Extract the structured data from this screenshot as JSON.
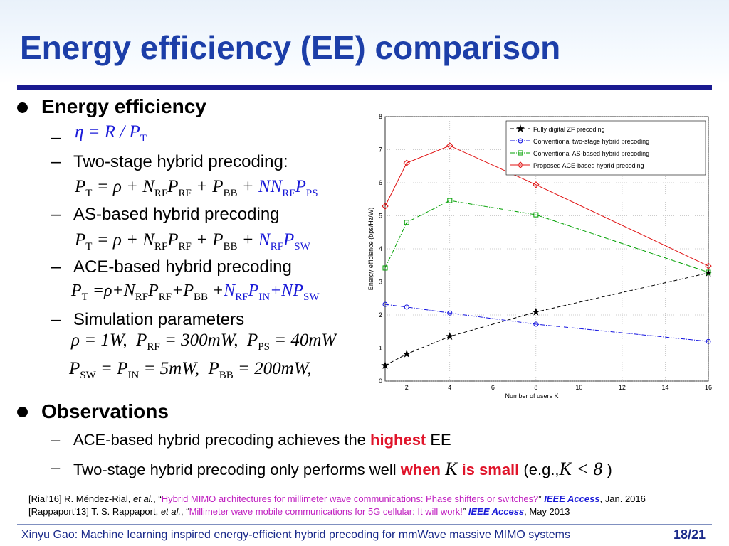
{
  "header": {
    "title": "Energy efficiency (EE) comparison"
  },
  "section1": {
    "heading": "Energy efficiency",
    "items": [
      {
        "formula": [
          {
            "t": "η = R / P"
          },
          {
            "t": "T",
            "sub": true
          }
        ]
      },
      {
        "text": "Two-stage hybrid precoding:",
        "formula": [
          {
            "t": "P"
          },
          {
            "t": "T",
            "sub": true
          },
          {
            "t": " = ρ + N"
          },
          {
            "t": "RF",
            "sub": true
          },
          {
            "t": "P"
          },
          {
            "t": "RF",
            "sub": true
          },
          {
            "t": " + P"
          },
          {
            "t": "BB",
            "sub": true
          },
          {
            "t": " + "
          },
          {
            "t": "NN",
            "color": "#1a1ad8"
          },
          {
            "t": "RF",
            "sub": true,
            "color": "#1a1ad8"
          },
          {
            "t": "P",
            "color": "#1a1ad8"
          },
          {
            "t": "PS",
            "sub": true,
            "color": "#1a1ad8"
          }
        ]
      },
      {
        "text": "AS-based hybrid precoding",
        "formula": [
          {
            "t": "P"
          },
          {
            "t": "T",
            "sub": true
          },
          {
            "t": " = ρ + N"
          },
          {
            "t": "RF",
            "sub": true
          },
          {
            "t": "P"
          },
          {
            "t": "RF",
            "sub": true
          },
          {
            "t": " + P"
          },
          {
            "t": "BB",
            "sub": true
          },
          {
            "t": " + "
          },
          {
            "t": "N",
            "color": "#1a1ad8"
          },
          {
            "t": "RF",
            "sub": true,
            "color": "#1a1ad8"
          },
          {
            "t": "P",
            "color": "#1a1ad8"
          },
          {
            "t": "SW",
            "sub": true,
            "color": "#1a1ad8"
          }
        ]
      },
      {
        "text": "ACE-based hybrid precoding",
        "formula": [
          {
            "t": "P"
          },
          {
            "t": "T",
            "sub": true
          },
          {
            "t": " =ρ+N"
          },
          {
            "t": "RF",
            "sub": true
          },
          {
            "t": "P"
          },
          {
            "t": "RF",
            "sub": true
          },
          {
            "t": "+P"
          },
          {
            "t": "BB",
            "sub": true
          },
          {
            "t": " +"
          },
          {
            "t": "N",
            "color": "#1a1ad8"
          },
          {
            "t": "RF",
            "sub": true,
            "color": "#1a1ad8"
          },
          {
            "t": "P",
            "color": "#1a1ad8"
          },
          {
            "t": "IN",
            "sub": true,
            "color": "#1a1ad8"
          },
          {
            "t": "+NP",
            "color": "#1a1ad8"
          },
          {
            "t": "SW",
            "sub": true,
            "color": "#1a1ad8"
          }
        ]
      },
      {
        "text": "Simulation parameters",
        "formula": [
          {
            "t": "ρ = 1W,  P"
          },
          {
            "t": "RF",
            "sub": true
          },
          {
            "t": " = 300mW,  P"
          },
          {
            "t": "PS",
            "sub": true
          },
          {
            "t": " = 40mW"
          }
        ],
        "formula2": [
          {
            "t": "P"
          },
          {
            "t": "SW",
            "sub": true
          },
          {
            "t": " = P"
          },
          {
            "t": "IN",
            "sub": true
          },
          {
            "t": " = 5mW,  P"
          },
          {
            "t": "BB",
            "sub": true
          },
          {
            "t": " = 200mW,"
          }
        ]
      }
    ]
  },
  "section2": {
    "heading": "Observations",
    "items": [
      [
        {
          "t": "ACE-based hybrid precoding achieves the "
        },
        {
          "t": "highest",
          "color": "#e0142a",
          "bold": true
        },
        {
          "t": " EE"
        }
      ],
      [
        {
          "t": "Two-stage hybrid precoding only performs well "
        },
        {
          "t": "when ",
          "color": "#e0142a",
          "bold": true
        },
        {
          "t": "K",
          "italic": true,
          "serif": true
        },
        {
          "t": " is small",
          "color": "#e0142a",
          "bold": true
        },
        {
          "t": " (e.g.,"
        },
        {
          "t": "K < 8",
          "italic": true,
          "serif": true
        },
        {
          "t": " )"
        }
      ]
    ]
  },
  "references": [
    [
      {
        "t": "[Rial'16] R. Méndez-Rial, "
      },
      {
        "t": "et al.",
        "italic": true
      },
      {
        "t": ", “"
      },
      {
        "t": "Hybrid MIMO architectures for millimeter wave communications: Phase shifters or switches?",
        "color": "#c020c0"
      },
      {
        "t": "” "
      },
      {
        "t": "IEEE Access",
        "color": "#1a1ad8",
        "bold": true,
        "italic": true
      },
      {
        "t": ", Jan. 2016"
      }
    ],
    [
      {
        "t": "[Rappaport'13] T. S. Rappaport, "
      },
      {
        "t": "et al.",
        "italic": true
      },
      {
        "t": ", “"
      },
      {
        "t": "Millimeter wave mobile communications for 5G cellular: It will work!",
        "color": "#c020c0"
      },
      {
        "t": "” "
      },
      {
        "t": "IEEE Access",
        "color": "#1a1ad8",
        "bold": true,
        "italic": true
      },
      {
        "t": ", May 2013"
      }
    ]
  ],
  "footer": {
    "text": "Xinyu Gao: Machine learning inspired energy-efficient hybrid precoding for mmWave massive MIMO systems",
    "page": "18/21"
  },
  "chart_data": {
    "type": "line",
    "xlabel": "Number of users  K",
    "ylabel": "Energy efficience (bps/Hz/W)",
    "x": [
      1,
      2,
      4,
      8,
      16
    ],
    "xlim": [
      1,
      16
    ],
    "xticks": [
      2,
      4,
      6,
      8,
      10,
      12,
      14,
      16
    ],
    "ylim": [
      0,
      8
    ],
    "yticks": [
      0,
      1,
      2,
      3,
      4,
      5,
      6,
      7,
      8
    ],
    "grid": true,
    "legend": "upper right",
    "series": [
      {
        "name": "Fully digital ZF precoding",
        "color": "#000000",
        "marker": "star",
        "dash": "5,3",
        "values": [
          0.47,
          0.82,
          1.35,
          2.09,
          3.27
        ]
      },
      {
        "name": "Conventional two-stage hybrid precoding",
        "color": "#1010e0",
        "marker": "circle",
        "dash": "6,2,1,2",
        "values": [
          2.32,
          2.24,
          2.06,
          1.72,
          1.2
        ]
      },
      {
        "name": "Conventional AS-based hybrid precoding",
        "color": "#00a000",
        "marker": "square",
        "dash": "6,2,1,2",
        "values": [
          3.42,
          4.8,
          5.46,
          5.03,
          3.29
        ]
      },
      {
        "name": "Proposed ACE-based hybrid precoding",
        "color": "#e01010",
        "marker": "diamond",
        "dash": "",
        "values": [
          5.29,
          6.6,
          7.12,
          5.94,
          3.48
        ]
      }
    ]
  }
}
